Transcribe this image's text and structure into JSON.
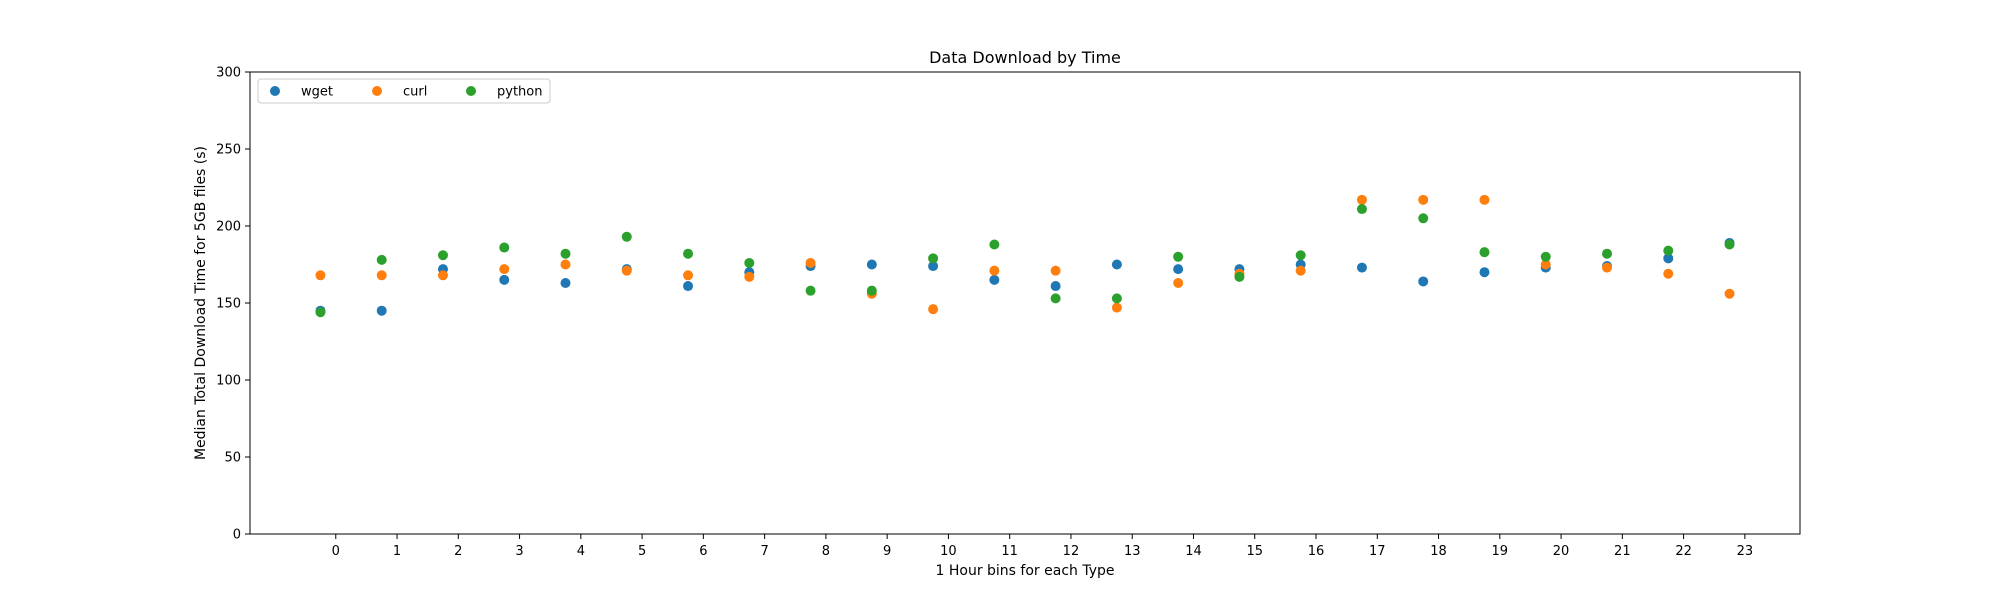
{
  "chart_data": {
    "type": "scatter",
    "title": "Data Download by Time",
    "xlabel": "1 Hour bins for each Type",
    "ylabel": "Median Total Download Time for 5GB files (s)",
    "ylim": [
      0,
      300
    ],
    "y_ticks": [
      0,
      50,
      100,
      150,
      200,
      250,
      300
    ],
    "x_ticks": [
      0,
      1,
      2,
      3,
      4,
      5,
      6,
      7,
      8,
      9,
      10,
      11,
      12,
      13,
      14,
      15,
      16,
      17,
      18,
      19,
      20,
      21,
      22,
      23
    ],
    "xlim": [
      -1.4,
      23.9
    ],
    "grid": false,
    "legend_position": "top-left",
    "series": [
      {
        "name": "wget",
        "color": "#1f77b4",
        "x": [
          -0.25,
          0.75,
          1.75,
          2.75,
          3.75,
          4.75,
          5.75,
          6.75,
          7.75,
          8.75,
          9.75,
          10.75,
          11.75,
          12.75,
          13.75,
          14.75,
          15.75,
          16.75,
          17.75,
          18.75,
          19.75,
          20.75,
          21.75,
          22.75
        ],
        "y": [
          145,
          145,
          172,
          165,
          163,
          172,
          161,
          170,
          174,
          175,
          174,
          165,
          161,
          175,
          172,
          172,
          175,
          173,
          164,
          170,
          173,
          174,
          179,
          189
        ]
      },
      {
        "name": "curl",
        "color": "#ff7f0e",
        "x": [
          -0.25,
          0.75,
          1.75,
          2.75,
          3.75,
          4.75,
          5.75,
          6.75,
          7.75,
          8.75,
          9.75,
          10.75,
          11.75,
          12.75,
          13.75,
          14.75,
          15.75,
          16.75,
          17.75,
          18.75,
          19.75,
          20.75,
          21.75,
          22.75
        ],
        "y": [
          168,
          168,
          168,
          172,
          175,
          171,
          168,
          167,
          176,
          156,
          146,
          171,
          171,
          147,
          163,
          169,
          171,
          217,
          217,
          217,
          175,
          173,
          169,
          156
        ]
      },
      {
        "name": "python",
        "color": "#2ca02c",
        "x": [
          -0.25,
          0.75,
          1.75,
          2.75,
          3.75,
          4.75,
          5.75,
          6.75,
          7.75,
          8.75,
          9.75,
          10.75,
          11.75,
          12.75,
          13.75,
          14.75,
          15.75,
          16.75,
          17.75,
          18.75,
          19.75,
          20.75,
          21.75,
          22.75
        ],
        "y": [
          144,
          178,
          181,
          186,
          182,
          193,
          182,
          176,
          158,
          158,
          179,
          188,
          153,
          153,
          180,
          167,
          181,
          211,
          205,
          183,
          180,
          182,
          184,
          188
        ]
      }
    ]
  }
}
